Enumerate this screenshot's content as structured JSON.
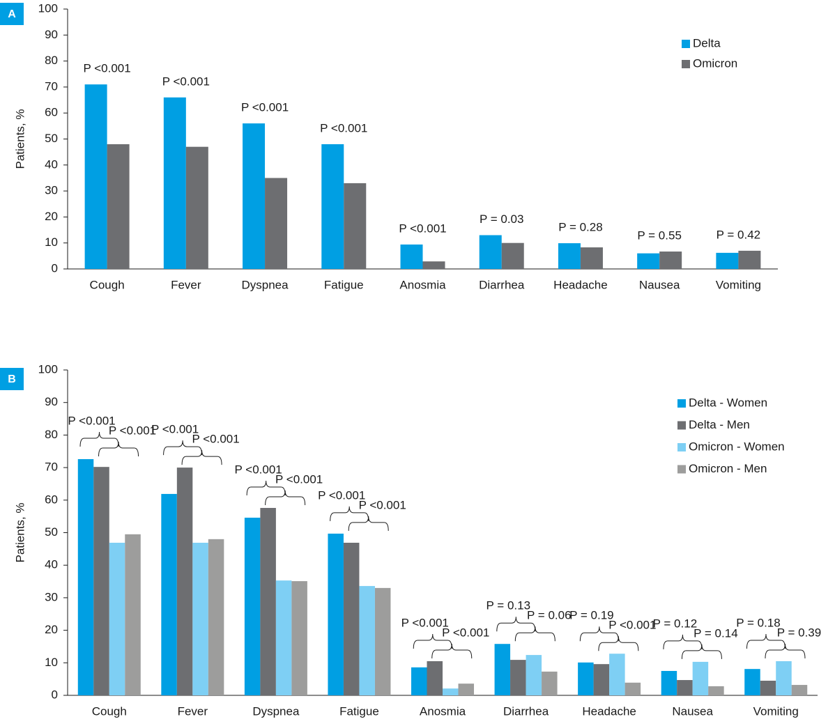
{
  "chart_data": [
    {
      "type": "bar",
      "panel": "A",
      "y_label": "Patients, %",
      "categories": [
        "Cough",
        "Fever",
        "Dyspnea",
        "Fatigue",
        "Anosmia",
        "Diarrhea",
        "Headache",
        "Nausea",
        "Vomiting"
      ],
      "series": [
        {
          "name": "Delta",
          "color": "#009fe3",
          "values": [
            71,
            66,
            56,
            48,
            9.4,
            13,
            9.9,
            6,
            6.2
          ]
        },
        {
          "name": "Omicron",
          "color": "#6d6e71",
          "values": [
            48,
            47,
            35,
            33,
            2.9,
            10,
            8.3,
            6.7,
            7
          ]
        }
      ],
      "p_values": [
        "P <0.001",
        "P <0.001",
        "P <0.001",
        "P <0.001",
        "P <0.001",
        "P = 0.03",
        "P = 0.28",
        "P = 0.55",
        "P = 0.42"
      ],
      "ylim": [
        0,
        100
      ],
      "yticks": [
        0,
        10,
        20,
        30,
        40,
        50,
        60,
        70,
        80,
        90,
        100
      ],
      "grid": false,
      "legend": "upper right"
    },
    {
      "type": "bar",
      "panel": "B",
      "y_label": "Patients, %",
      "categories": [
        "Cough",
        "Fever",
        "Dyspnea",
        "Fatigue",
        "Anosmia",
        "Diarrhea",
        "Headache",
        "Nausea",
        "Vomiting"
      ],
      "series": [
        {
          "name": "Delta - Women",
          "color": "#009fe3",
          "values": [
            72.6,
            61.9,
            54.6,
            49.7,
            8.6,
            15.8,
            10.1,
            7.5,
            8.1
          ]
        },
        {
          "name": "Delta - Men",
          "color": "#6d6e71",
          "values": [
            70.2,
            70,
            57.6,
            46.9,
            10.5,
            10.9,
            9.6,
            4.7,
            4.5
          ]
        },
        {
          "name": "Omicron - Women",
          "color": "#7ecff4",
          "values": [
            46.9,
            46.9,
            35.3,
            33.6,
            2.1,
            12.4,
            12.8,
            10.3,
            10.5
          ]
        },
        {
          "name": "Omicron - Men",
          "color": "#9d9d9c",
          "values": [
            49.5,
            48,
            35.1,
            33,
            3.6,
            7.3,
            3.9,
            2.8,
            3.2
          ]
        }
      ],
      "p_values": [
        [
          "P <0.001",
          "P <0.001"
        ],
        [
          "P <0.001",
          "P <0.001"
        ],
        [
          "P <0.001",
          "P <0.001"
        ],
        [
          "P <0.001",
          "P <0.001"
        ],
        [
          "P <0.001",
          "P <0.001"
        ],
        [
          "P = 0.13",
          "P = 0.06"
        ],
        [
          "P = 0.19",
          "P <0.001"
        ],
        [
          "P = 0.12",
          "P = 0.14"
        ],
        [
          "P = 0.18",
          "P = 0.39"
        ]
      ],
      "ylim": [
        0,
        100
      ],
      "yticks": [
        0,
        10,
        20,
        30,
        40,
        50,
        60,
        70,
        80,
        90,
        100
      ],
      "grid": false,
      "legend": "upper right"
    }
  ]
}
